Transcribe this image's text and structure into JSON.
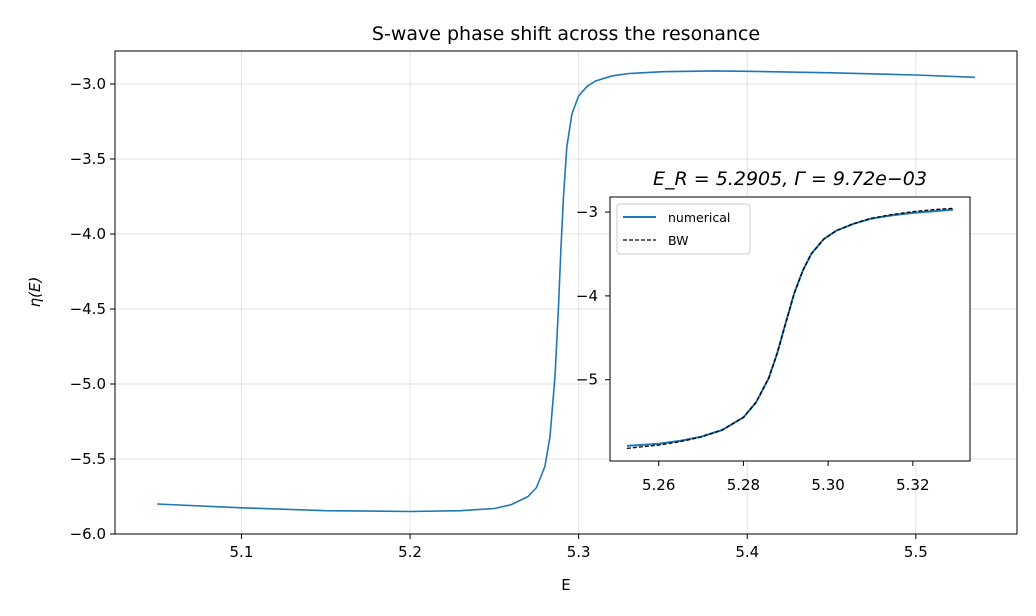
{
  "chart_data": [
    {
      "type": "line",
      "title": "S-wave phase shift across the resonance",
      "xlabel": "E",
      "ylabel": "η(E)",
      "xlim": [
        5.025,
        5.56
      ],
      "ylim": [
        -6.0,
        -2.78
      ],
      "xticks": [
        5.1,
        5.2,
        5.3,
        5.4,
        5.5
      ],
      "xtick_labels": [
        "5.1",
        "5.2",
        "5.3",
        "5.4",
        "5.5"
      ],
      "yticks": [
        -6.0,
        -5.5,
        -5.0,
        -4.5,
        -4.0,
        -3.5,
        -3.0
      ],
      "ytick_labels": [
        "−6.0",
        "−5.5",
        "−5.0",
        "−4.5",
        "−4.0",
        "−3.5",
        "−3.0"
      ],
      "grid": true,
      "color": "#1f77b4",
      "x": [
        5.05,
        5.1,
        5.15,
        5.2,
        5.23,
        5.25,
        5.26,
        5.27,
        5.275,
        5.28,
        5.283,
        5.286,
        5.288,
        5.2895,
        5.291,
        5.293,
        5.296,
        5.3,
        5.305,
        5.31,
        5.32,
        5.33,
        5.35,
        5.38,
        5.4,
        5.45,
        5.5,
        5.535
      ],
      "y": [
        -5.8,
        -5.825,
        -5.845,
        -5.85,
        -5.845,
        -5.83,
        -5.805,
        -5.75,
        -5.69,
        -5.55,
        -5.35,
        -4.95,
        -4.5,
        -4.1,
        -3.75,
        -3.42,
        -3.2,
        -3.08,
        -3.015,
        -2.98,
        -2.945,
        -2.93,
        -2.918,
        -2.913,
        -2.915,
        -2.925,
        -2.94,
        -2.955
      ]
    },
    {
      "type": "line",
      "title": "E_R = 5.2905,  Γ = 9.72e−03",
      "xlim": [
        5.2485,
        5.3335
      ],
      "ylim": [
        -5.97,
        -2.82
      ],
      "xticks": [
        5.26,
        5.28,
        5.3,
        5.32
      ],
      "xtick_labels": [
        "5.26",
        "5.28",
        "5.30",
        "5.32"
      ],
      "yticks": [
        -5,
        -4,
        -3
      ],
      "ytick_labels": [
        "−5",
        "−4",
        "−3"
      ],
      "legend": "upper-left",
      "series": [
        {
          "name": "numerical",
          "color": "#1f77b4",
          "style": "solid",
          "x": [
            5.2525,
            5.26,
            5.265,
            5.27,
            5.275,
            5.28,
            5.283,
            5.286,
            5.288,
            5.29,
            5.292,
            5.294,
            5.296,
            5.299,
            5.302,
            5.306,
            5.31,
            5.315,
            5.32,
            5.325,
            5.3295
          ],
          "y": [
            -5.79,
            -5.765,
            -5.73,
            -5.68,
            -5.6,
            -5.45,
            -5.27,
            -4.98,
            -4.68,
            -4.32,
            -3.97,
            -3.7,
            -3.5,
            -3.32,
            -3.22,
            -3.14,
            -3.08,
            -3.04,
            -3.01,
            -2.99,
            -2.97
          ]
        },
        {
          "name": "BW",
          "color": "#000000",
          "style": "dashed",
          "x": [
            5.2525,
            5.26,
            5.265,
            5.27,
            5.275,
            5.28,
            5.283,
            5.286,
            5.288,
            5.29,
            5.292,
            5.294,
            5.296,
            5.299,
            5.302,
            5.306,
            5.31,
            5.315,
            5.32,
            5.325,
            5.3295
          ],
          "y": [
            -5.82,
            -5.78,
            -5.74,
            -5.685,
            -5.6,
            -5.45,
            -5.27,
            -4.98,
            -4.68,
            -4.32,
            -3.97,
            -3.7,
            -3.5,
            -3.32,
            -3.22,
            -3.14,
            -3.075,
            -3.03,
            -2.995,
            -2.97,
            -2.955
          ]
        }
      ]
    }
  ]
}
